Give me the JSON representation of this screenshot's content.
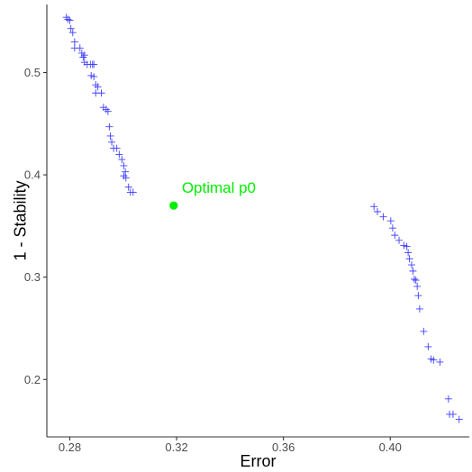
{
  "chart_data": {
    "type": "scatter",
    "title": "",
    "xlabel": "Error",
    "ylabel": "1 - Stability",
    "xlim": [
      0.2714,
      0.4296
    ],
    "ylim": [
      0.1439,
      0.5665
    ],
    "xticks": [
      0.28,
      0.32,
      0.36,
      0.4
    ],
    "xtick_labels": [
      "0.28",
      "0.32",
      "0.36",
      "0.40"
    ],
    "yticks": [
      0.2,
      0.3,
      0.4,
      0.5
    ],
    "ytick_labels": [
      "0.2",
      "0.3",
      "0.4",
      "0.5"
    ],
    "grid": false,
    "series": [
      {
        "marker": "plus",
        "color": "#4040ff",
        "points": [
          [
            0.2787,
            0.554
          ],
          [
            0.2793,
            0.552
          ],
          [
            0.28,
            0.551
          ],
          [
            0.2804,
            0.543
          ],
          [
            0.2811,
            0.539
          ],
          [
            0.2818,
            0.53
          ],
          [
            0.2818,
            0.524
          ],
          [
            0.2838,
            0.524
          ],
          [
            0.2845,
            0.519
          ],
          [
            0.285,
            0.515
          ],
          [
            0.2855,
            0.517
          ],
          [
            0.2855,
            0.51
          ],
          [
            0.2865,
            0.508
          ],
          [
            0.2877,
            0.508
          ],
          [
            0.2885,
            0.508
          ],
          [
            0.289,
            0.508
          ],
          [
            0.288,
            0.497
          ],
          [
            0.289,
            0.496
          ],
          [
            0.2897,
            0.488
          ],
          [
            0.2905,
            0.486
          ],
          [
            0.2897,
            0.48
          ],
          [
            0.2918,
            0.48
          ],
          [
            0.2926,
            0.466
          ],
          [
            0.2936,
            0.464
          ],
          [
            0.2943,
            0.462
          ],
          [
            0.2948,
            0.447
          ],
          [
            0.2952,
            0.438
          ],
          [
            0.2957,
            0.432
          ],
          [
            0.2964,
            0.426
          ],
          [
            0.2976,
            0.426
          ],
          [
            0.2985,
            0.42
          ],
          [
            0.2995,
            0.415
          ],
          [
            0.3002,
            0.409
          ],
          [
            0.3008,
            0.403
          ],
          [
            0.3002,
            0.399
          ],
          [
            0.301,
            0.397
          ],
          [
            0.302,
            0.388
          ],
          [
            0.3027,
            0.383
          ],
          [
            0.3037,
            0.383
          ],
          [
            0.3939,
            0.369
          ],
          [
            0.3952,
            0.364
          ],
          [
            0.3974,
            0.359
          ],
          [
            0.4002,
            0.355
          ],
          [
            0.4009,
            0.348
          ],
          [
            0.4017,
            0.341
          ],
          [
            0.4033,
            0.336
          ],
          [
            0.4051,
            0.331
          ],
          [
            0.4062,
            0.33
          ],
          [
            0.4067,
            0.324
          ],
          [
            0.4072,
            0.318
          ],
          [
            0.408,
            0.312
          ],
          [
            0.4085,
            0.306
          ],
          [
            0.409,
            0.298
          ],
          [
            0.4096,
            0.297
          ],
          [
            0.4101,
            0.291
          ],
          [
            0.4105,
            0.282
          ],
          [
            0.411,
            0.269
          ],
          [
            0.4125,
            0.247
          ],
          [
            0.4142,
            0.232
          ],
          [
            0.4153,
            0.22
          ],
          [
            0.4162,
            0.219
          ],
          [
            0.4186,
            0.217
          ],
          [
            0.4218,
            0.181
          ],
          [
            0.4222,
            0.166
          ],
          [
            0.4235,
            0.166
          ],
          [
            0.4258,
            0.161
          ]
        ]
      }
    ],
    "highlight": {
      "label": "Optimal p0",
      "x": 0.3189,
      "y": 0.37,
      "color": "#00ee00"
    }
  }
}
